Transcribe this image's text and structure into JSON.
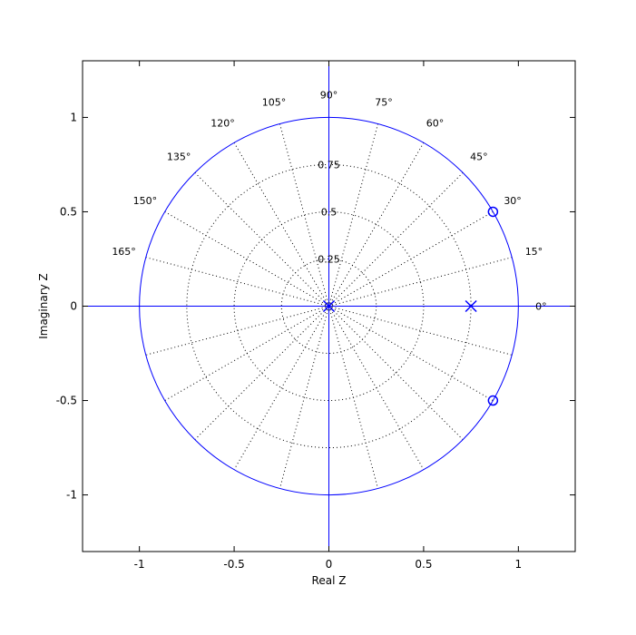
{
  "chart_data": {
    "type": "scatter",
    "subtype": "pole-zero plot",
    "title": "",
    "xlabel": "Real Z",
    "ylabel": "Imaginary Z",
    "xlim": [
      -1.3,
      1.3
    ],
    "ylim": [
      -1.3,
      1.3
    ],
    "x_ticks": [
      -1,
      -0.5,
      0,
      0.5,
      1
    ],
    "x_tick_labels": [
      "-1",
      "-0.5",
      "0",
      "0.5",
      "1"
    ],
    "y_ticks": [
      -1,
      -0.5,
      0,
      0.5,
      1
    ],
    "y_tick_labels": [
      "-1",
      "-0.5",
      "0",
      "0.5",
      "1"
    ],
    "polar_grid": {
      "radii": [
        0.25,
        0.5,
        0.75
      ],
      "radius_labels": [
        "0.25",
        "0.5",
        "0.75"
      ],
      "angles_deg": [
        0,
        15,
        30,
        45,
        60,
        75,
        90,
        105,
        120,
        135,
        150,
        165
      ],
      "angle_labels": [
        "0°",
        "15°",
        "30°",
        "45°",
        "60°",
        "75°",
        "90°",
        "105°",
        "120°",
        "135°",
        "150°",
        "165°"
      ],
      "grid_style": "dotted"
    },
    "unit_circle": true,
    "zeros": [
      {
        "x": 0.866,
        "y": 0.5
      },
      {
        "x": 0.866,
        "y": -0.5
      }
    ],
    "poles": [
      {
        "x": 0,
        "y": 0
      },
      {
        "x": 0.75,
        "y": 0
      }
    ],
    "colors": {
      "markers": "#0000ff",
      "circle": "#0000ff",
      "axes": "#000000",
      "grid": "#000000"
    }
  }
}
